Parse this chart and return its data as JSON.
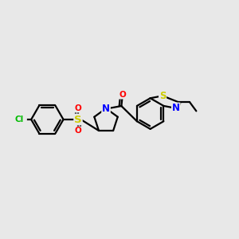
{
  "bg_color": "#e8e8e8",
  "atom_colors": {
    "C": "#000000",
    "Cl": "#00bb00",
    "O": "#ff0000",
    "N": "#0000ff",
    "S": "#cccc00"
  },
  "bond_color": "#000000",
  "bond_width": 1.6,
  "figsize": [
    3.0,
    3.0
  ],
  "dpi": 100,
  "font_size": 8.5,
  "font_size_small": 7.5,
  "xlim": [
    0,
    10
  ],
  "ylim": [
    2,
    8
  ]
}
